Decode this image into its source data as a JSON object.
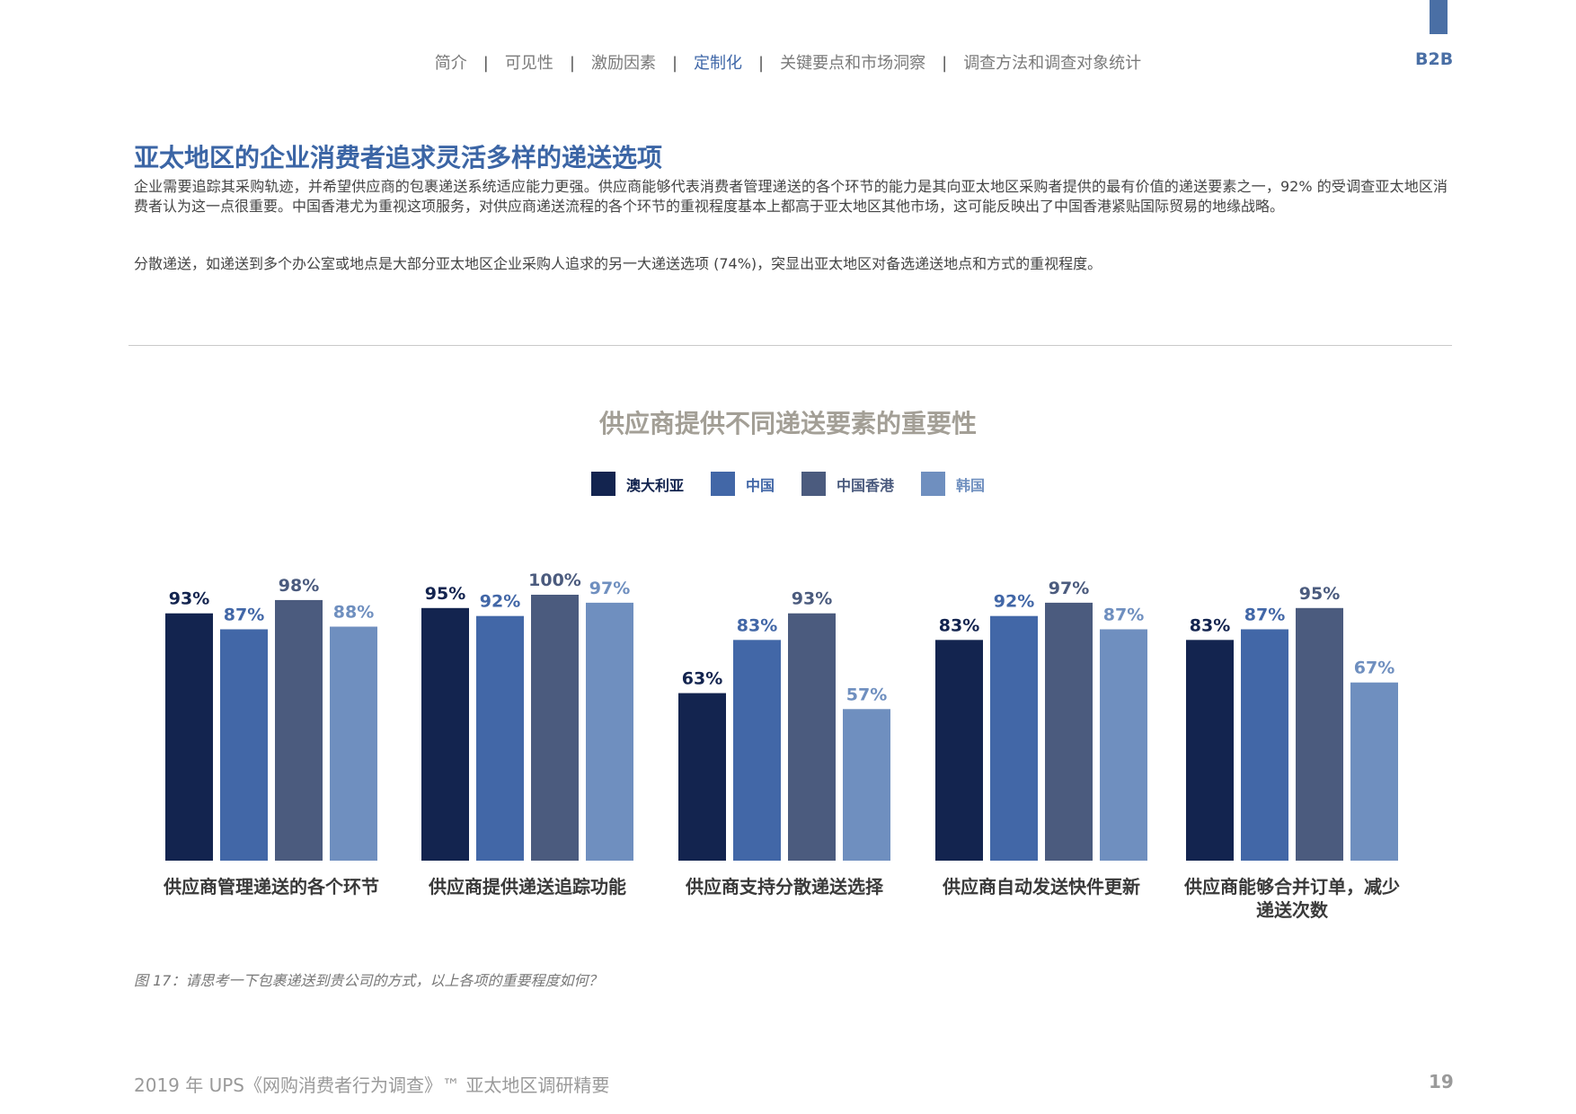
{
  "header": {
    "nav": [
      {
        "label": "简介",
        "active": false
      },
      {
        "label": "可见性",
        "active": false
      },
      {
        "label": "激励因素",
        "active": false
      },
      {
        "label": "定制化",
        "active": true
      },
      {
        "label": "关键要点和市场洞察",
        "active": false
      },
      {
        "label": "调查方法和调查对象统计",
        "active": false
      }
    ],
    "separator": "|",
    "badge": "B2B"
  },
  "headline": "亚太地区的企业消费者追求灵活多样的递送选项",
  "paragraphs": [
    "企业需要追踪其采购轨迹，并希望供应商的包裹递送系统适应能力更强。供应商能够代表消费者管理递送的各个环节的能力是其向亚太地区采购者提供的最有价值的递送要素之一，92% 的受调查亚太地区消费者认为这一点很重要。中国香港尤为重视这项服务，对供应商递送流程的各个环节的重视程度基本上都高于亚太地区其他市场，这可能反映出了中国香港紧贴国际贸易的地缘战略。",
    "分散递送，如递送到多个办公室或地点是大部分亚太地区企业采购人追求的另一大递送选项 (74%)，突显出亚太地区对备选递送地点和方式的重视程度。"
  ],
  "chart_data": {
    "type": "bar",
    "title": "供应商提供不同递送要素的重要性",
    "categories": [
      [
        "供应商管理递送的各个环节"
      ],
      [
        "供应商提供递送追踪功能"
      ],
      [
        "供应商支持分散递送选择"
      ],
      [
        "供应商自动发送快件更新"
      ],
      [
        "供应商能够合并订单，减少",
        "递送次数"
      ]
    ],
    "series": [
      {
        "name": "澳大利亚",
        "color": "#13244f",
        "values": [
          93,
          95,
          63,
          83,
          83
        ]
      },
      {
        "name": "中国",
        "color": "#4267a7",
        "values": [
          87,
          92,
          83,
          92,
          87
        ]
      },
      {
        "name": "中国香港",
        "color": "#4b5b7e",
        "values": [
          98,
          100,
          93,
          97,
          95
        ]
      },
      {
        "name": "韩国",
        "color": "#6f8fbf",
        "values": [
          88,
          97,
          57,
          87,
          67
        ]
      }
    ],
    "value_suffix": "%",
    "ylim": [
      0,
      100
    ],
    "grid": false,
    "legend_position": "top-center"
  },
  "caption": "图 17：请思考一下包裹递送到贵公司的方式，以上各项的重要程度如何？",
  "footer": {
    "text": "2019 年 UPS《网购消费者行为调查》™ 亚太地区调研精要",
    "page_number": "19"
  }
}
